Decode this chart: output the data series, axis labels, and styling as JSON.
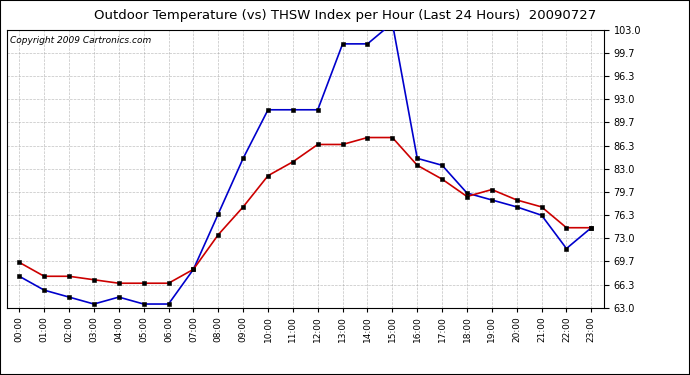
{
  "title": "Outdoor Temperature (vs) THSW Index per Hour (Last 24 Hours)  20090727",
  "copyright": "Copyright 2009 Cartronics.com",
  "hours": [
    "00:00",
    "01:00",
    "02:00",
    "03:00",
    "04:00",
    "05:00",
    "06:00",
    "07:00",
    "08:00",
    "09:00",
    "10:00",
    "11:00",
    "12:00",
    "13:00",
    "14:00",
    "15:00",
    "16:00",
    "17:00",
    "18:00",
    "19:00",
    "20:00",
    "21:00",
    "22:00",
    "23:00"
  ],
  "thsw": [
    67.5,
    65.5,
    64.5,
    63.5,
    64.5,
    63.5,
    63.5,
    68.5,
    76.5,
    84.5,
    91.5,
    91.5,
    91.5,
    101.0,
    101.0,
    104.0,
    84.5,
    83.5,
    79.5,
    78.5,
    77.5,
    76.3,
    71.5,
    74.5
  ],
  "outdoor_temp": [
    69.5,
    67.5,
    67.5,
    67.0,
    66.5,
    66.5,
    66.5,
    68.5,
    73.5,
    77.5,
    82.0,
    84.0,
    86.5,
    86.5,
    87.5,
    87.5,
    83.5,
    81.5,
    79.0,
    80.0,
    78.5,
    77.5,
    74.5,
    74.5
  ],
  "thsw_color": "#0000cc",
  "temp_color": "#cc0000",
  "bg_color": "#ffffff",
  "grid_color": "#999999",
  "ylim_min": 63.0,
  "ylim_max": 103.0,
  "yticks": [
    63.0,
    66.3,
    69.7,
    73.0,
    76.3,
    79.7,
    83.0,
    86.3,
    89.7,
    93.0,
    96.3,
    99.7,
    103.0
  ],
  "title_fontsize": 9.5,
  "copyright_fontsize": 6.5,
  "markersize": 3.5,
  "linewidth": 1.2
}
